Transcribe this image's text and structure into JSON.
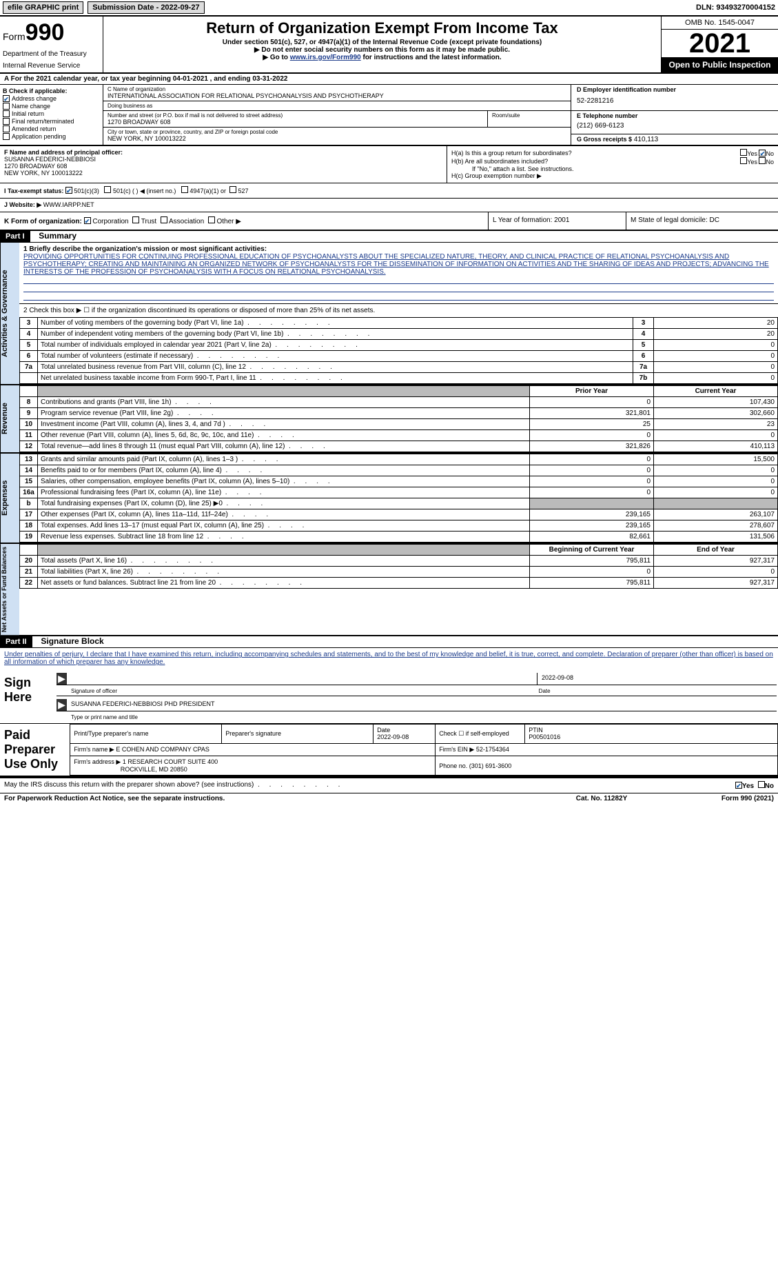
{
  "topbar": {
    "efile": "efile GRAPHIC print",
    "submission": "Submission Date - 2022-09-27",
    "dln": "DLN: 93493270004152"
  },
  "header": {
    "form_label": "Form",
    "form_num": "990",
    "dept": "Department of the Treasury",
    "irs": "Internal Revenue Service",
    "title": "Return of Organization Exempt From Income Tax",
    "subtitle": "Under section 501(c), 527, or 4947(a)(1) of the Internal Revenue Code (except private foundations)",
    "note1": "▶ Do not enter social security numbers on this form as it may be made public.",
    "note2_pre": "▶ Go to ",
    "note2_link": "www.irs.gov/Form990",
    "note2_post": " for instructions and the latest information.",
    "omb": "OMB No. 1545-0047",
    "year": "2021",
    "open": "Open to Public Inspection"
  },
  "rowA": "A  For the 2021 calendar year, or tax year beginning 04-01-2021     , and ending 03-31-2022",
  "colB": {
    "title": "B Check if applicable:",
    "items": [
      {
        "label": "Address change",
        "checked": true
      },
      {
        "label": "Name change",
        "checked": false
      },
      {
        "label": "Initial return",
        "checked": false
      },
      {
        "label": "Final return/terminated",
        "checked": false
      },
      {
        "label": "Amended return",
        "checked": false
      },
      {
        "label": "Application pending",
        "checked": false
      }
    ]
  },
  "colC": {
    "name_lbl": "C Name of organization",
    "name": "INTERNATIONAL ASSOCIATION FOR RELATIONAL PSYCHOANALYSIS AND PSYCHOTHERAPY",
    "dba_lbl": "Doing business as",
    "dba": "",
    "street_lbl": "Number and street (or P.O. box if mail is not delivered to street address)",
    "street": "1270 BROADWAY 608",
    "suite_lbl": "Room/suite",
    "city_lbl": "City or town, state or province, country, and ZIP or foreign postal code",
    "city": "NEW YORK, NY  100013222"
  },
  "colD": {
    "ein_lbl": "D Employer identification number",
    "ein": "52-2281216",
    "tel_lbl": "E Telephone number",
    "tel": "(212) 669-6123",
    "gross_lbl": "G Gross receipts $",
    "gross": "410,113"
  },
  "rowF": {
    "lbl": "F  Name and address of principal officer:",
    "name": "SUSANNA FEDERICI-NEBBIOSI",
    "addr1": "1270 BROADWAY 608",
    "addr2": "NEW YORK, NY  100013222"
  },
  "rowH": {
    "ha": "H(a)  Is this a group return for subordinates?",
    "hb": "H(b)  Are all subordinates included?",
    "hb_note": "If \"No,\" attach a list. See instructions.",
    "hc": "H(c)  Group exemption number ▶"
  },
  "rowI": {
    "label": "I   Tax-exempt status:",
    "opt1": "501(c)(3)",
    "opt2": "501(c) (  ) ◀ (insert no.)",
    "opt3": "4947(a)(1) or",
    "opt4": "527"
  },
  "rowJ": {
    "label": "J   Website: ▶",
    "value": "WWW.IARPP.NET"
  },
  "rowK": {
    "label": "K Form of organization:",
    "opts": [
      "Corporation",
      "Trust",
      "Association",
      "Other ▶"
    ]
  },
  "rowL": "L Year of formation: 2001",
  "rowM": "M State of legal domicile: DC",
  "part1": {
    "bar": "Part I",
    "title": "Summary",
    "vtab1": "Activities & Governance",
    "vtab2": "Revenue",
    "vtab3": "Expenses",
    "vtab4": "Net Assets or Fund Balances",
    "line1_lbl": "1  Briefly describe the organization's mission or most significant activities:",
    "line1_text": "PROVIDING OPPORTUNITIES FOR CONTINUING PROFESSIONAL EDUCATION OF PSYCHOANALYSTS ABOUT THE SPECIALIZED NATURE, THEORY, AND CLINICAL PRACTICE OF RELATIONAL PSYCHOANALYSIS AND PSYCHOTHERAPY; CREATING AND MAINTAINING AN ORGANIZED NETWORK OF PSYCHOANALYSTS FOR THE DISSEMINATION OF INFORMATION ON ACTIVITIES AND THE SHARING OF IDEAS AND PROJECTS; ADVANCING THE INTERESTS OF THE PROFESSION OF PSYCHOANALYSIS WITH A FOCUS ON RELATIONAL PSYCHOANALYSIS.",
    "line2": "2    Check this box ▶ ☐  if the organization discontinued its operations or disposed of more than 25% of its net assets.",
    "gov_lines": [
      {
        "n": "3",
        "desc": "Number of voting members of the governing body (Part VI, line 1a)",
        "col": "3",
        "val": "20"
      },
      {
        "n": "4",
        "desc": "Number of independent voting members of the governing body (Part VI, line 1b)",
        "col": "4",
        "val": "20"
      },
      {
        "n": "5",
        "desc": "Total number of individuals employed in calendar year 2021 (Part V, line 2a)",
        "col": "5",
        "val": "0"
      },
      {
        "n": "6",
        "desc": "Total number of volunteers (estimate if necessary)",
        "col": "6",
        "val": "0"
      },
      {
        "n": "7a",
        "desc": "Total unrelated business revenue from Part VIII, column (C), line 12",
        "col": "7a",
        "val": "0"
      },
      {
        "n": "",
        "desc": "Net unrelated business taxable income from Form 990-T, Part I, line 11",
        "col": "7b",
        "val": "0"
      }
    ],
    "prior_hdr": "Prior Year",
    "current_hdr": "Current Year",
    "rev_lines": [
      {
        "n": "8",
        "desc": "Contributions and grants (Part VIII, line 1h)",
        "prior": "0",
        "curr": "107,430"
      },
      {
        "n": "9",
        "desc": "Program service revenue (Part VIII, line 2g)",
        "prior": "321,801",
        "curr": "302,660"
      },
      {
        "n": "10",
        "desc": "Investment income (Part VIII, column (A), lines 3, 4, and 7d )",
        "prior": "25",
        "curr": "23"
      },
      {
        "n": "11",
        "desc": "Other revenue (Part VIII, column (A), lines 5, 6d, 8c, 9c, 10c, and 11e)",
        "prior": "0",
        "curr": "0"
      },
      {
        "n": "12",
        "desc": "Total revenue—add lines 8 through 11 (must equal Part VIII, column (A), line 12)",
        "prior": "321,826",
        "curr": "410,113"
      }
    ],
    "exp_lines": [
      {
        "n": "13",
        "desc": "Grants and similar amounts paid (Part IX, column (A), lines 1–3 )",
        "prior": "0",
        "curr": "15,500"
      },
      {
        "n": "14",
        "desc": "Benefits paid to or for members (Part IX, column (A), line 4)",
        "prior": "0",
        "curr": "0"
      },
      {
        "n": "15",
        "desc": "Salaries, other compensation, employee benefits (Part IX, column (A), lines 5–10)",
        "prior": "0",
        "curr": "0"
      },
      {
        "n": "16a",
        "desc": "Professional fundraising fees (Part IX, column (A), line 11e)",
        "prior": "0",
        "curr": "0"
      },
      {
        "n": "b",
        "desc": "Total fundraising expenses (Part IX, column (D), line 25) ▶0",
        "prior": "",
        "curr": "",
        "grey": true
      },
      {
        "n": "17",
        "desc": "Other expenses (Part IX, column (A), lines 11a–11d, 11f–24e)",
        "prior": "239,165",
        "curr": "263,107"
      },
      {
        "n": "18",
        "desc": "Total expenses. Add lines 13–17 (must equal Part IX, column (A), line 25)",
        "prior": "239,165",
        "curr": "278,607"
      },
      {
        "n": "19",
        "desc": "Revenue less expenses. Subtract line 18 from line 12",
        "prior": "82,661",
        "curr": "131,506"
      }
    ],
    "na_hdr1": "Beginning of Current Year",
    "na_hdr2": "End of Year",
    "na_lines": [
      {
        "n": "20",
        "desc": "Total assets (Part X, line 16)",
        "prior": "795,811",
        "curr": "927,317"
      },
      {
        "n": "21",
        "desc": "Total liabilities (Part X, line 26)",
        "prior": "0",
        "curr": "0"
      },
      {
        "n": "22",
        "desc": "Net assets or fund balances. Subtract line 21 from line 20",
        "prior": "795,811",
        "curr": "927,317"
      }
    ]
  },
  "part2": {
    "bar": "Part II",
    "title": "Signature Block",
    "decl": "Under penalties of perjury, I declare that I have examined this return, including accompanying schedules and statements, and to the best of my knowledge and belief, it is true, correct, and complete. Declaration of preparer (other than officer) is based on all information of which preparer has any knowledge.",
    "sign_here": "Sign Here",
    "sig_date": "2022-09-08",
    "sig_officer_lbl": "Signature of officer",
    "sig_date_lbl": "Date",
    "officer_name": "SUSANNA FEDERICI-NEBBIOSI PHD  PRESIDENT",
    "officer_name_lbl": "Type or print name and title",
    "paid": "Paid Preparer Use Only",
    "prep_name_lbl": "Print/Type preparer's name",
    "prep_sig_lbl": "Preparer's signature",
    "prep_date_lbl": "Date",
    "prep_date": "2022-09-08",
    "prep_self_lbl": "Check ☐ if self-employed",
    "ptin_lbl": "PTIN",
    "ptin": "P00501016",
    "firm_name_lbl": "Firm's name     ▶",
    "firm_name": "E COHEN AND COMPANY CPAS",
    "firm_ein_lbl": "Firm's EIN ▶",
    "firm_ein": "52-1754364",
    "firm_addr_lbl": "Firm's address ▶",
    "firm_addr1": "1 RESEARCH COURT SUITE 400",
    "firm_addr2": "ROCKVILLE, MD  20850",
    "phone_lbl": "Phone no.",
    "phone": "(301) 691-3600"
  },
  "footer": {
    "discuss": "May the IRS discuss this return with the preparer shown above? (see instructions)",
    "yes": "Yes",
    "no": "No",
    "paperwork": "For Paperwork Reduction Act Notice, see the separate instructions.",
    "cat": "Cat. No. 11282Y",
    "form": "Form 990 (2021)"
  }
}
